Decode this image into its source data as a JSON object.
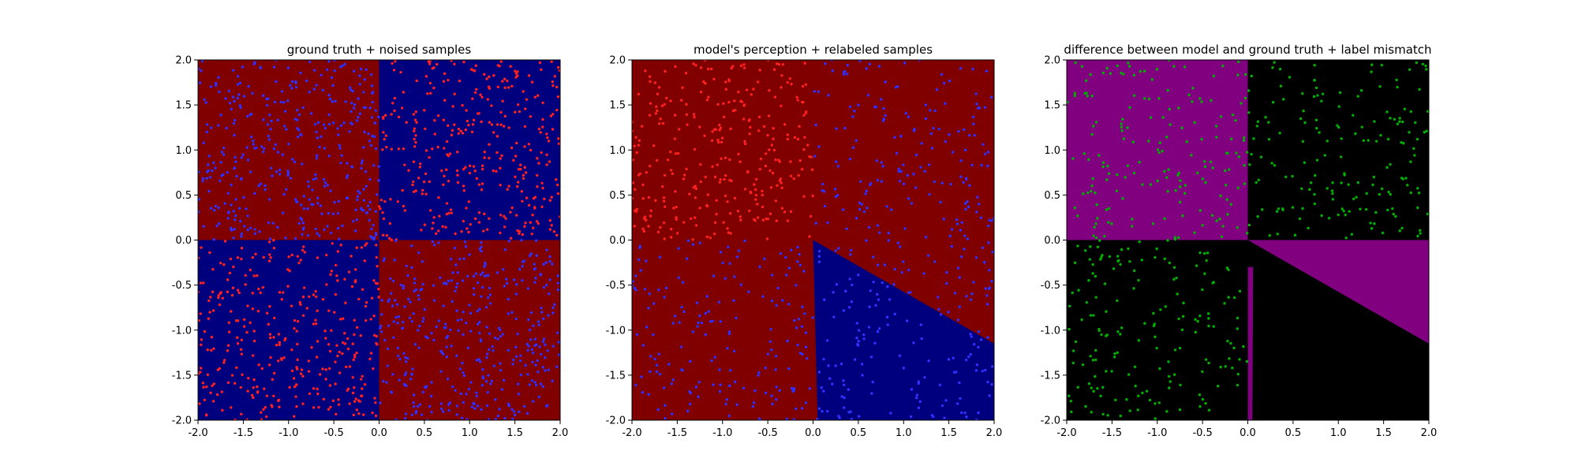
{
  "figure": {
    "background": "#ffffff"
  },
  "chart_data": [
    {
      "type": "scatter",
      "title": "ground truth + noised samples",
      "xlabel": "",
      "ylabel": "",
      "xlim": [
        -2.0,
        2.0
      ],
      "ylim": [
        -2.0,
        2.0
      ],
      "xticks": [
        "-2.0",
        "-1.5",
        "-1.0",
        "-0.5",
        "0.0",
        "0.5",
        "1.0",
        "1.5",
        "2.0"
      ],
      "yticks": [
        "-2.0",
        "-1.5",
        "-1.0",
        "-0.5",
        "0.0",
        "0.5",
        "1.0",
        "1.5",
        "2.0"
      ],
      "grid": false,
      "legend": "none",
      "background_regions": [
        {
          "polygon": [
            [
              -2,
              0
            ],
            [
              0,
              0
            ],
            [
              0,
              2
            ],
            [
              -2,
              2
            ]
          ],
          "color": "#800000"
        },
        {
          "polygon": [
            [
              0,
              0
            ],
            [
              2,
              0
            ],
            [
              2,
              2
            ],
            [
              0,
              2
            ]
          ],
          "color": "#00007f"
        },
        {
          "polygon": [
            [
              -2,
              -2
            ],
            [
              0,
              -2
            ],
            [
              0,
              0
            ],
            [
              -2,
              0
            ]
          ],
          "color": "#00007f"
        },
        {
          "polygon": [
            [
              0,
              -2
            ],
            [
              2,
              -2
            ],
            [
              2,
              0
            ],
            [
              0,
              0
            ]
          ],
          "color": "#800000"
        }
      ],
      "series": [
        {
          "color": "#ff2020",
          "seed": 11,
          "count": 340,
          "density": "inside",
          "region": [
            [
              0,
              2
            ],
            [
              0,
              2
            ]
          ],
          "rule": "q1"
        },
        {
          "color": "#ff2020",
          "seed": 12,
          "count": 340,
          "density": "inside",
          "region": [
            [
              -2,
              0
            ],
            [
              -2,
              0
            ]
          ],
          "rule": "q3"
        },
        {
          "color": "#3030ff",
          "seed": 13,
          "count": 380,
          "density": "inside",
          "region": [
            [
              -2,
              0
            ],
            [
              0,
              2
            ]
          ],
          "rule": "q2"
        },
        {
          "color": "#3030ff",
          "seed": 14,
          "count": 380,
          "density": "inside",
          "region": [
            [
              0,
              2
            ],
            [
              -2,
              0
            ]
          ],
          "rule": "q4"
        }
      ]
    },
    {
      "type": "scatter",
      "title": "model's perception + relabeled samples",
      "xlabel": "",
      "ylabel": "",
      "xlim": [
        -2.0,
        2.0
      ],
      "ylim": [
        -2.0,
        2.0
      ],
      "xticks": [
        "-2.0",
        "-1.5",
        "-1.0",
        "-0.5",
        "0.0",
        "0.5",
        "1.0",
        "1.5",
        "2.0"
      ],
      "yticks": [
        "-2.0",
        "-1.5",
        "-1.0",
        "-0.5",
        "0.0",
        "0.5",
        "1.0",
        "1.5",
        "2.0"
      ],
      "grid": false,
      "legend": "none",
      "background_regions": [
        {
          "polygon": [
            [
              -2,
              -2
            ],
            [
              2,
              -2
            ],
            [
              2,
              2
            ],
            [
              -2,
              2
            ]
          ],
          "color": "#800000"
        },
        {
          "polygon": [
            [
              0.0,
              0.0
            ],
            [
              2.0,
              -1.15
            ],
            [
              2.0,
              -2.0
            ],
            [
              0.05,
              -2.0
            ]
          ],
          "color": "#00007f"
        }
      ],
      "series": [
        {
          "color": "#ff2020",
          "seed": 21,
          "count": 300,
          "density": "inside",
          "region": [
            [
              -2,
              0
            ],
            [
              0,
              2
            ]
          ],
          "rule": "q2"
        },
        {
          "color": "#3030ff",
          "seed": 22,
          "count": 520,
          "density": "inside",
          "region": [
            [
              -2,
              2
            ],
            [
              -2,
              2
            ]
          ],
          "rule": "not-q2"
        }
      ]
    },
    {
      "type": "scatter",
      "title": "difference between model and ground truth + label mismatch",
      "xlabel": "",
      "ylabel": "",
      "xlim": [
        -2.0,
        2.0
      ],
      "ylim": [
        -2.0,
        2.0
      ],
      "xticks": [
        "-2.0",
        "-1.5",
        "-1.0",
        "-0.5",
        "0.0",
        "0.5",
        "1.0",
        "1.5",
        "2.0"
      ],
      "yticks": [
        "-2.0",
        "-1.5",
        "-1.0",
        "-0.5",
        "0.0",
        "0.5",
        "1.0",
        "1.5",
        "2.0"
      ],
      "grid": false,
      "legend": "none",
      "background_regions": [
        {
          "polygon": [
            [
              -2,
              -2
            ],
            [
              2,
              -2
            ],
            [
              2,
              2
            ],
            [
              -2,
              2
            ]
          ],
          "color": "#000000"
        },
        {
          "polygon": [
            [
              -2,
              0
            ],
            [
              0,
              0
            ],
            [
              0,
              2
            ],
            [
              -2,
              2
            ]
          ],
          "color": "#800080"
        },
        {
          "polygon": [
            [
              0.0,
              0.0
            ],
            [
              2.0,
              0.0
            ],
            [
              2.0,
              -1.15
            ]
          ],
          "color": "#800080"
        },
        {
          "polygon": [
            [
              0.0,
              -0.3
            ],
            [
              0.06,
              -0.3
            ],
            [
              0.05,
              -2.0
            ],
            [
              0.0,
              -2.0
            ]
          ],
          "color": "#800080"
        }
      ],
      "series": [
        {
          "color": "#00b000",
          "seed": 31,
          "count": 170,
          "density": "inside",
          "region": [
            [
              -2,
              0
            ],
            [
              0,
              2
            ]
          ],
          "rule": "q2"
        },
        {
          "color": "#00b000",
          "seed": 32,
          "count": 170,
          "density": "inside",
          "region": [
            [
              0,
              2
            ],
            [
              0,
              2
            ]
          ],
          "rule": "q1"
        },
        {
          "color": "#00b000",
          "seed": 33,
          "count": 170,
          "density": "inside",
          "region": [
            [
              -2,
              0
            ],
            [
              -2,
              0
            ]
          ],
          "rule": "q3"
        }
      ]
    }
  ]
}
